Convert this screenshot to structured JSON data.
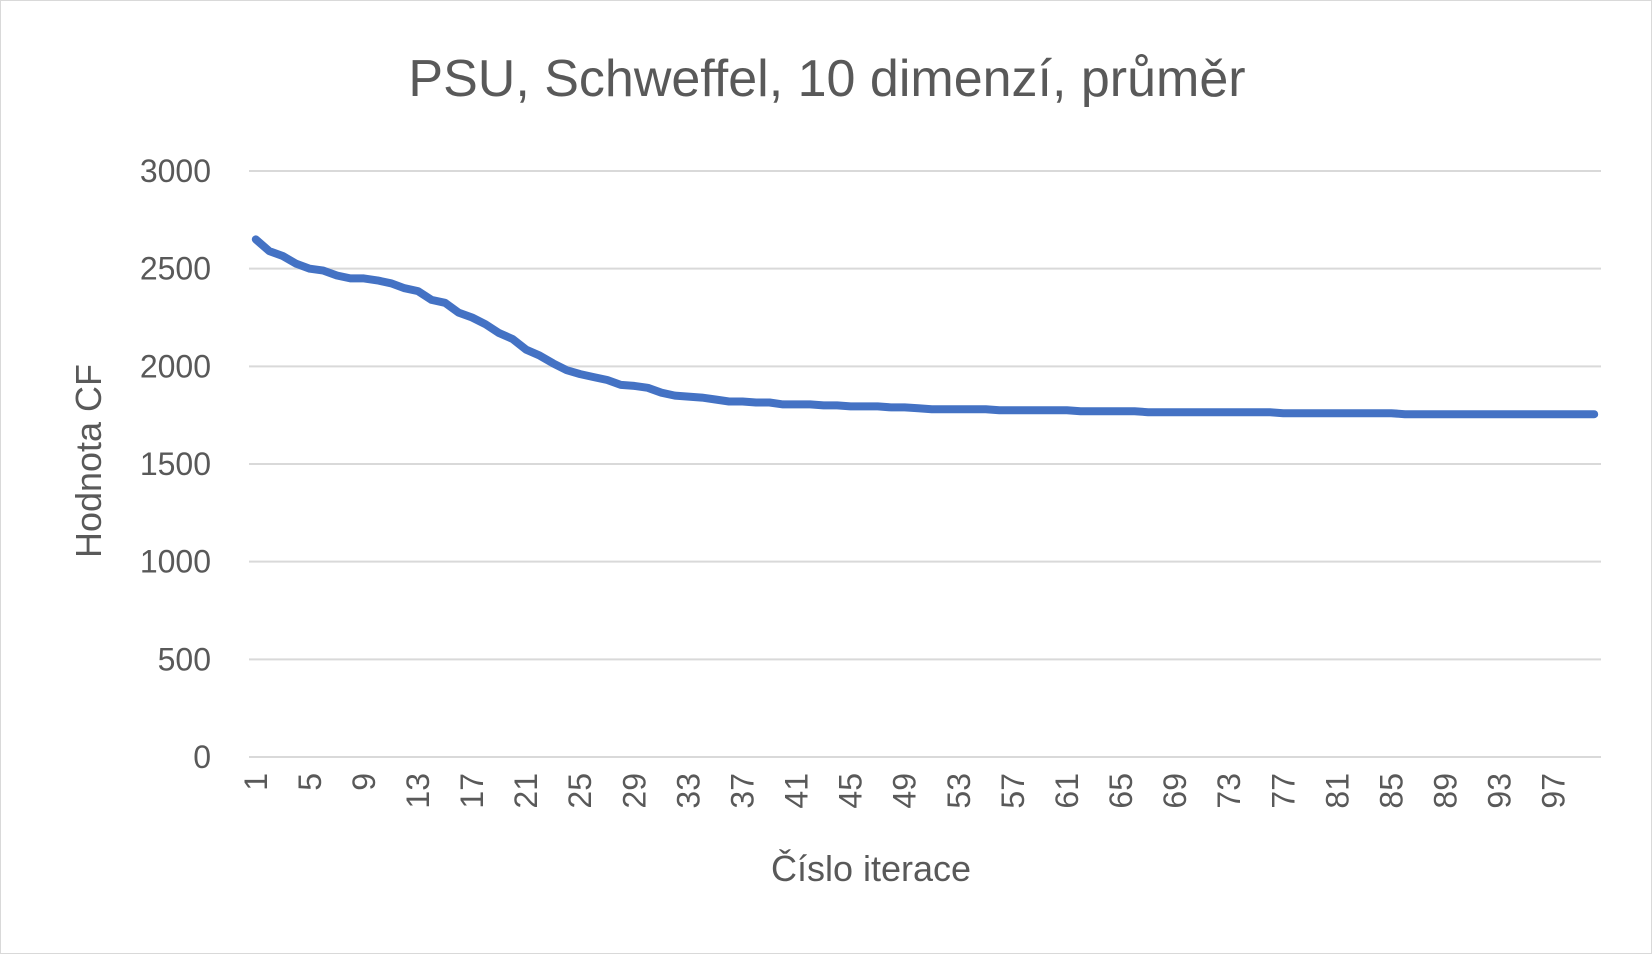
{
  "chart_data": {
    "type": "line",
    "title": "PSU, Schweffel, 10 dimenzí, průměr",
    "xlabel": "Číslo iterace",
    "ylabel": "Hodnota CF",
    "ylim": [
      0,
      3000
    ],
    "yticks": [
      "0",
      "500",
      "1000",
      "1500",
      "2000",
      "2500",
      "3000"
    ],
    "x_tick_labels": [
      "1",
      "5",
      "9",
      "13",
      "17",
      "21",
      "25",
      "29",
      "33",
      "37",
      "41",
      "45",
      "49",
      "53",
      "57",
      "61",
      "65",
      "69",
      "73",
      "77",
      "81",
      "85",
      "89",
      "93",
      "97"
    ],
    "grid": true,
    "legend": "none",
    "series": [
      {
        "color": "#4472c4",
        "x": [
          1,
          2,
          3,
          4,
          5,
          6,
          7,
          8,
          9,
          10,
          11,
          12,
          13,
          14,
          15,
          16,
          17,
          18,
          19,
          20,
          21,
          22,
          23,
          24,
          25,
          26,
          27,
          28,
          29,
          30,
          31,
          32,
          33,
          34,
          35,
          36,
          37,
          38,
          39,
          40,
          41,
          42,
          43,
          44,
          45,
          46,
          47,
          48,
          49,
          50,
          51,
          52,
          53,
          54,
          55,
          56,
          57,
          58,
          59,
          60,
          61,
          62,
          63,
          64,
          65,
          66,
          67,
          68,
          69,
          70,
          71,
          72,
          73,
          74,
          75,
          76,
          77,
          78,
          79,
          80,
          81,
          82,
          83,
          84,
          85,
          86,
          87,
          88,
          89,
          90,
          91,
          92,
          93,
          94,
          95,
          96,
          97,
          98,
          99,
          100
        ],
        "values": [
          2650,
          2590,
          2565,
          2525,
          2500,
          2490,
          2465,
          2450,
          2450,
          2440,
          2425,
          2400,
          2385,
          2340,
          2325,
          2275,
          2250,
          2215,
          2170,
          2140,
          2085,
          2055,
          2015,
          1980,
          1960,
          1945,
          1930,
          1905,
          1900,
          1890,
          1865,
          1850,
          1845,
          1840,
          1830,
          1820,
          1820,
          1815,
          1815,
          1805,
          1805,
          1805,
          1800,
          1800,
          1795,
          1795,
          1795,
          1790,
          1790,
          1785,
          1780,
          1780,
          1780,
          1780,
          1780,
          1775,
          1775,
          1775,
          1775,
          1775,
          1775,
          1770,
          1770,
          1770,
          1770,
          1770,
          1765,
          1765,
          1765,
          1765,
          1765,
          1765,
          1765,
          1765,
          1765,
          1765,
          1760,
          1760,
          1760,
          1760,
          1760,
          1760,
          1760,
          1760,
          1760,
          1755,
          1755,
          1755,
          1755,
          1755,
          1755,
          1755,
          1755,
          1755,
          1755,
          1755,
          1755,
          1755,
          1755,
          1755
        ]
      }
    ]
  }
}
